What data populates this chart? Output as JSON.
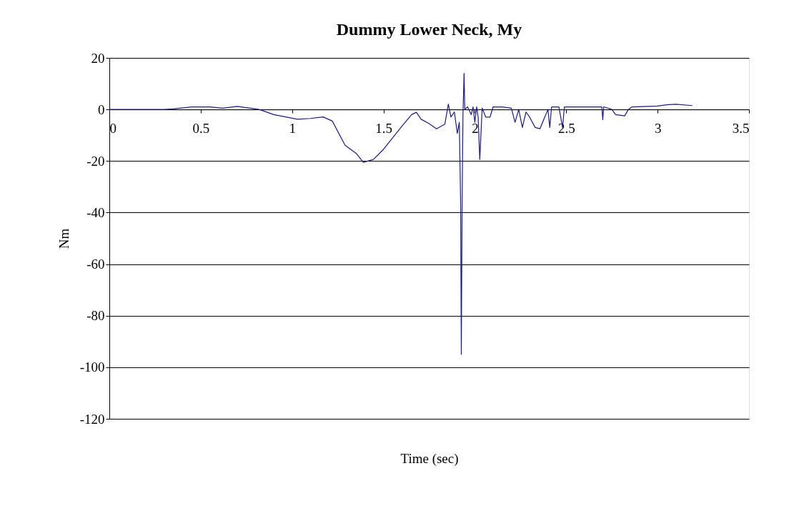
{
  "chart_data": {
    "type": "line",
    "title": "Dummy Lower Neck, My",
    "xlabel": "Time (sec)",
    "ylabel": "Nm",
    "xlim": [
      0,
      3.5
    ],
    "xticks": [
      0,
      0.5,
      1,
      1.5,
      2,
      2.5,
      3,
      3.5
    ],
    "ylim": [
      -120,
      20
    ],
    "yticks": [
      -120,
      -100,
      -80,
      -60,
      -40,
      -20,
      0,
      20
    ],
    "grid": "y",
    "marker": "none",
    "line_style": "solid",
    "series": [
      {
        "color": "#1c1c80",
        "x": [
          0,
          0.3,
          0.35,
          0.45,
          0.55,
          0.62,
          0.7,
          0.82,
          0.9,
          1.03,
          1.1,
          1.17,
          1.22,
          1.29,
          1.35,
          1.39,
          1.445,
          1.497,
          1.55,
          1.6,
          1.654,
          1.68,
          1.706,
          1.75,
          1.79,
          1.836,
          1.855,
          1.869,
          1.888,
          1.904,
          1.915,
          1.922,
          1.926,
          1.93,
          1.935,
          1.941,
          1.945,
          1.96,
          1.98,
          1.99,
          2.0,
          2.01,
          2.018,
          2.027,
          2.04,
          2.06,
          2.083,
          2.1,
          2.15,
          2.2,
          2.22,
          2.24,
          2.26,
          2.28,
          2.3,
          2.33,
          2.356,
          2.4,
          2.41,
          2.42,
          2.46,
          2.48,
          2.49,
          2.52,
          2.695,
          2.7,
          2.705,
          2.75,
          2.77,
          2.82,
          2.84,
          2.86,
          3.0,
          3.05,
          3.1,
          3.19
        ],
        "values": [
          0,
          0,
          0.2,
          1,
          1,
          0.5,
          1.2,
          0,
          -2,
          -3.8,
          -3.5,
          -2.9,
          -4.5,
          -13.9,
          -17,
          -20.5,
          -19.4,
          -15.7,
          -11,
          -6.6,
          -2,
          -1.1,
          -3.8,
          -5.5,
          -7.5,
          -5.7,
          2.1,
          -2.9,
          -1,
          -9.3,
          -5,
          -35,
          -95,
          -40,
          -2,
          14,
          0,
          1,
          -2,
          1,
          -5,
          1,
          -3,
          -19.4,
          0.5,
          -3,
          -3,
          1,
          1,
          0.5,
          -5,
          0,
          -7,
          -1,
          -3,
          -7,
          -7.5,
          0,
          -7,
          1,
          1,
          -7,
          1,
          1,
          1,
          -4,
          1,
          0,
          -2,
          -2.5,
          0,
          1,
          1.3,
          1.8,
          2,
          1.5
        ]
      }
    ]
  }
}
